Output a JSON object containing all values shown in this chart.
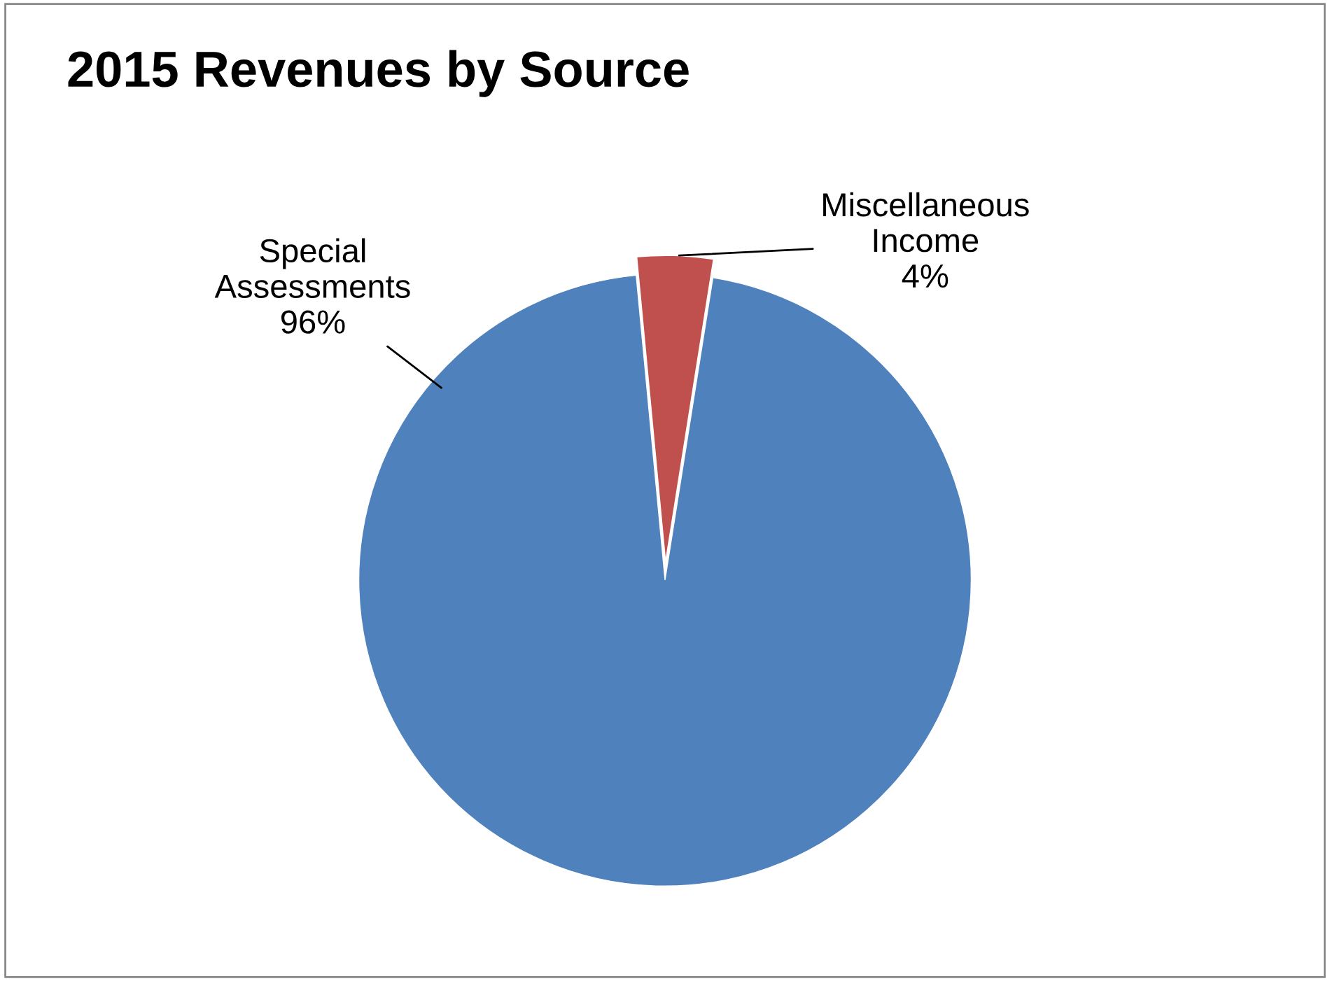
{
  "chart_data": {
    "type": "pie",
    "title": "2015 Revenues by Source",
    "categories": [
      "Special Assessments",
      "Miscellaneous Income"
    ],
    "values": [
      96,
      4
    ],
    "colors": [
      "#4f81bd",
      "#c0504d"
    ],
    "value_labels": [
      "96%",
      "4%"
    ]
  }
}
